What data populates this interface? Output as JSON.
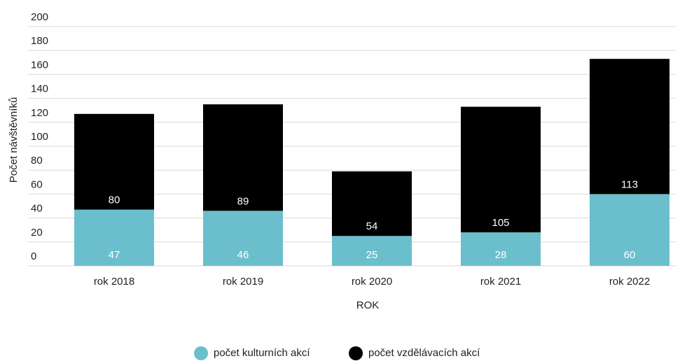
{
  "chart_data": {
    "type": "stacked_bar",
    "categories": [
      "rok 2018",
      "rok 2019",
      "rok 2020",
      "rok 2021",
      "rok 2022"
    ],
    "series": [
      {
        "name": "počet kulturních akcí",
        "color": "#6bbfcc",
        "values": [
          47,
          46,
          25,
          28,
          60
        ]
      },
      {
        "name": "počet vzdělávacích akcí",
        "color": "#000000",
        "values": [
          80,
          89,
          54,
          105,
          113
        ]
      }
    ],
    "ylim": [
      0,
      200
    ],
    "yticks": [
      0,
      20,
      40,
      60,
      80,
      100,
      120,
      140,
      160,
      180,
      200
    ],
    "grid": true,
    "xlabel": "ROK",
    "ylabel": "Počet návštěvníků",
    "legend": "bottom"
  }
}
